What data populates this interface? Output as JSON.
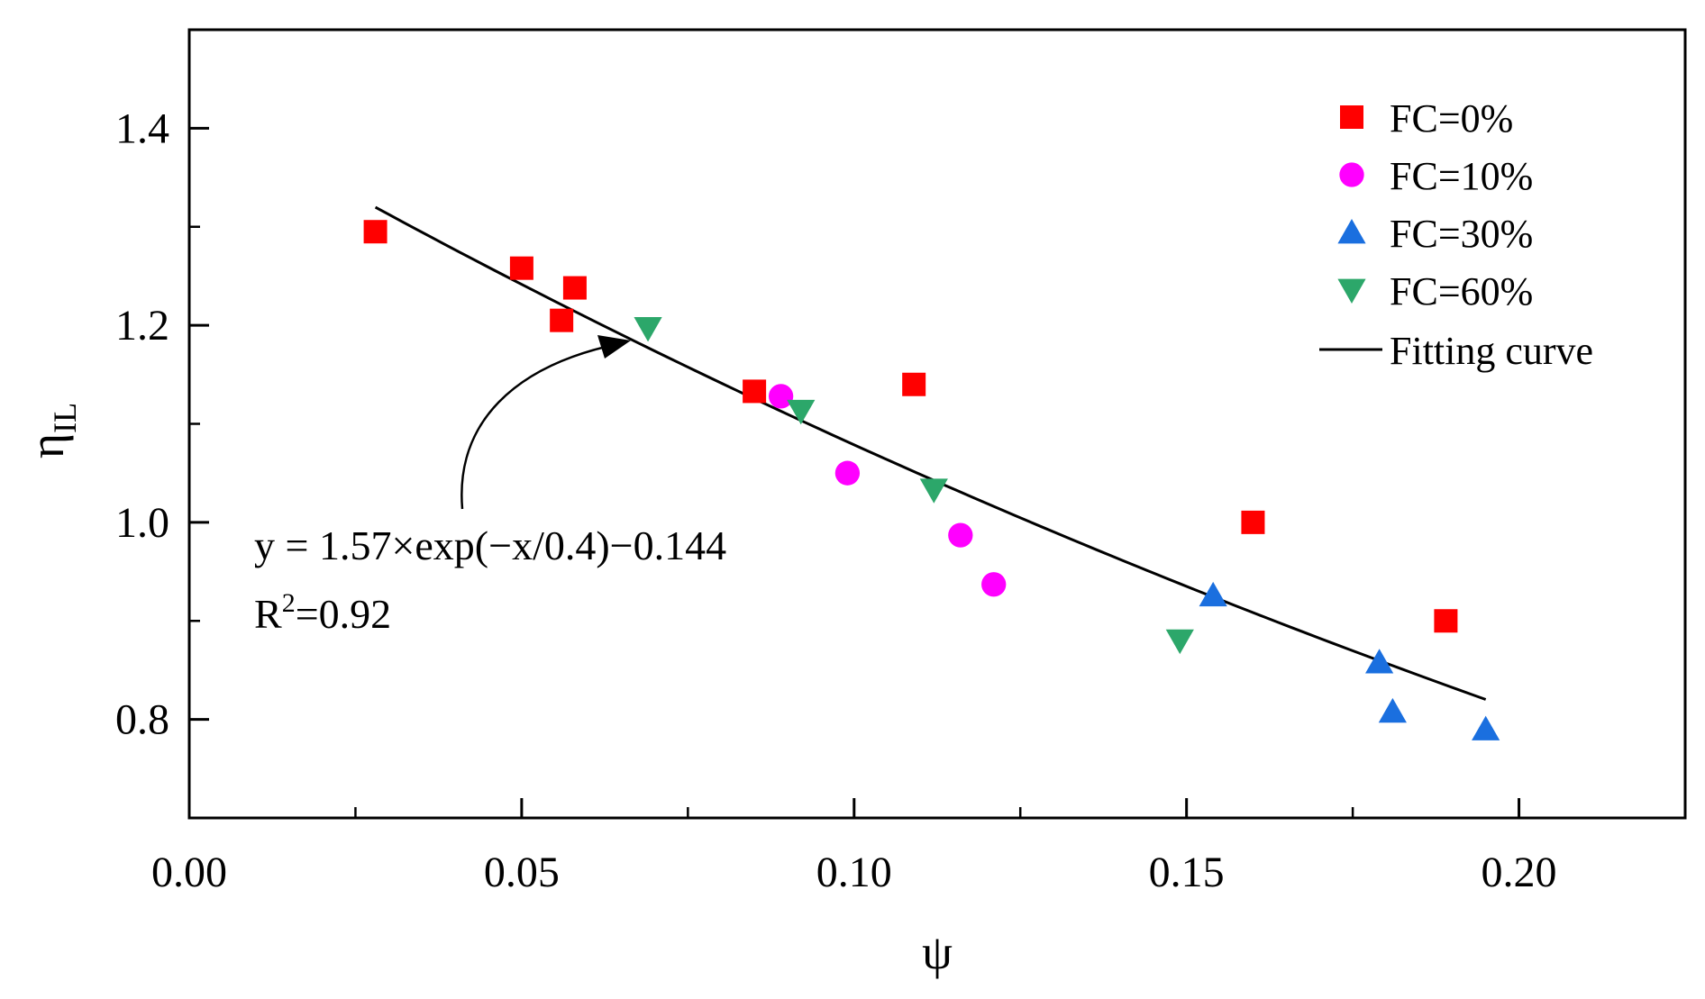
{
  "chart_data": {
    "type": "scatter",
    "xlabel": "ψ",
    "ylabel": {
      "main": "η",
      "sub": "IL"
    },
    "xlim": [
      0.0,
      0.225
    ],
    "ylim": [
      0.7,
      1.5
    ],
    "x_ticks": [
      "0.00",
      "0.05",
      "0.10",
      "0.15",
      "0.20"
    ],
    "x_tick_values": [
      0.0,
      0.05,
      0.1,
      0.15,
      0.2
    ],
    "x_minor_tick_values": [
      0.025,
      0.075,
      0.125,
      0.175,
      0.225
    ],
    "y_ticks": [
      "0.8",
      "1.0",
      "1.2",
      "1.4"
    ],
    "y_tick_values": [
      0.8,
      1.0,
      1.2,
      1.4
    ],
    "y_minor_tick_values": [
      0.7,
      0.9,
      1.1,
      1.3,
      1.5
    ],
    "legend_position": "top-right",
    "series": [
      {
        "name": "FC=0%",
        "marker": "square",
        "color": "#ff0000",
        "points": [
          {
            "x": 0.028,
            "y": 1.295
          },
          {
            "x": 0.05,
            "y": 1.258
          },
          {
            "x": 0.056,
            "y": 1.205
          },
          {
            "x": 0.058,
            "y": 1.238
          },
          {
            "x": 0.085,
            "y": 1.133
          },
          {
            "x": 0.109,
            "y": 1.14
          },
          {
            "x": 0.16,
            "y": 1.0
          },
          {
            "x": 0.189,
            "y": 0.9
          }
        ]
      },
      {
        "name": "FC=10%",
        "marker": "circle",
        "color": "#ff00ff",
        "points": [
          {
            "x": 0.089,
            "y": 1.128
          },
          {
            "x": 0.099,
            "y": 1.05
          },
          {
            "x": 0.116,
            "y": 0.987
          },
          {
            "x": 0.121,
            "y": 0.937
          }
        ]
      },
      {
        "name": "FC=30%",
        "marker": "triangle-up",
        "color": "#1a6fdf",
        "points": [
          {
            "x": 0.154,
            "y": 0.926
          },
          {
            "x": 0.179,
            "y": 0.858
          },
          {
            "x": 0.181,
            "y": 0.808
          },
          {
            "x": 0.195,
            "y": 0.79
          }
        ]
      },
      {
        "name": "FC=60%",
        "marker": "triangle-down",
        "color": "#2ca76a",
        "points": [
          {
            "x": 0.069,
            "y": 1.197
          },
          {
            "x": 0.092,
            "y": 1.113
          },
          {
            "x": 0.112,
            "y": 1.033
          },
          {
            "x": 0.149,
            "y": 0.88
          }
        ]
      }
    ],
    "fit": {
      "name": "Fitting curve",
      "color": "#000000",
      "x_range": [
        0.028,
        0.195
      ],
      "equation": "y = 1.57×exp(−x/0.4)−0.144",
      "a": 1.57,
      "t": 0.4,
      "c": -0.144,
      "r2_label": "R",
      "r2_exp": "2",
      "r2_value": "=0.92"
    }
  }
}
